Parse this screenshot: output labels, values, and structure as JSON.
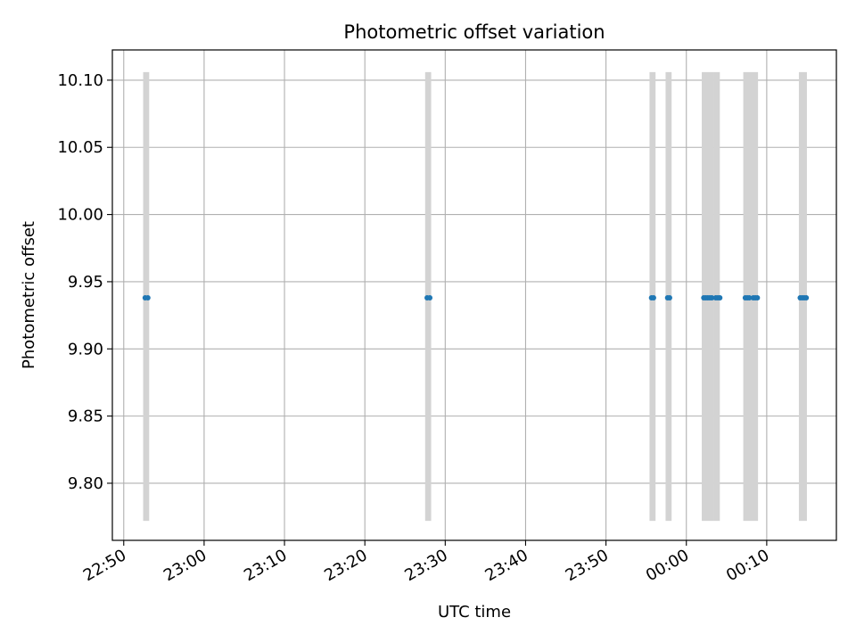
{
  "chart_data": {
    "type": "scatter",
    "title": "Photometric offset variation",
    "xlabel": "UTC time",
    "ylabel": "Photometric offset",
    "x_tick_labels": [
      "22:50",
      "23:00",
      "23:10",
      "23:20",
      "23:30",
      "23:40",
      "23:50",
      "00:00",
      "00:10"
    ],
    "y_ticks": [
      9.8,
      9.85,
      9.9,
      9.95,
      10.0,
      10.05,
      10.1
    ],
    "y_tick_labels": [
      "9.80",
      "9.85",
      "9.90",
      "9.95",
      "10.00",
      "10.05",
      "10.10"
    ],
    "xlim": [
      "22:48:35",
      "00:18:40"
    ],
    "ylim": [
      9.7575,
      10.1225
    ],
    "grid": true,
    "point_color": "#1f77b4",
    "band_color": "#d3d3d3",
    "band_range": [
      9.772,
      10.106
    ],
    "points": [
      {
        "time": "22:52:40",
        "value": 9.938
      },
      {
        "time": "22:53:00",
        "value": 9.938
      },
      {
        "time": "23:27:45",
        "value": 9.938
      },
      {
        "time": "23:28:05",
        "value": 9.938
      },
      {
        "time": "23:55:40",
        "value": 9.938
      },
      {
        "time": "23:55:55",
        "value": 9.938
      },
      {
        "time": "23:57:40",
        "value": 9.938
      },
      {
        "time": "23:57:55",
        "value": 9.938
      },
      {
        "time": "00:02:10",
        "value": 9.938
      },
      {
        "time": "00:02:25",
        "value": 9.938
      },
      {
        "time": "00:02:40",
        "value": 9.938
      },
      {
        "time": "00:02:55",
        "value": 9.938
      },
      {
        "time": "00:03:10",
        "value": 9.938
      },
      {
        "time": "00:03:40",
        "value": 9.938
      },
      {
        "time": "00:03:55",
        "value": 9.938
      },
      {
        "time": "00:04:10",
        "value": 9.938
      },
      {
        "time": "00:07:20",
        "value": 9.938
      },
      {
        "time": "00:07:35",
        "value": 9.938
      },
      {
        "time": "00:07:50",
        "value": 9.938
      },
      {
        "time": "00:08:20",
        "value": 9.938
      },
      {
        "time": "00:08:35",
        "value": 9.938
      },
      {
        "time": "00:08:50",
        "value": 9.938
      },
      {
        "time": "00:14:10",
        "value": 9.938
      },
      {
        "time": "00:14:25",
        "value": 9.938
      },
      {
        "time": "00:14:40",
        "value": 9.938
      },
      {
        "time": "00:14:55",
        "value": 9.938
      }
    ],
    "bands": [
      {
        "start": "22:52:25",
        "end": "22:53:10"
      },
      {
        "start": "23:27:30",
        "end": "23:28:15"
      },
      {
        "start": "23:55:25",
        "end": "23:56:10"
      },
      {
        "start": "23:57:25",
        "end": "23:58:10"
      },
      {
        "start": "00:01:55",
        "end": "00:03:25"
      },
      {
        "start": "00:03:25",
        "end": "00:04:10"
      },
      {
        "start": "00:07:05",
        "end": "00:08:55"
      },
      {
        "start": "00:14:00",
        "end": "00:15:00"
      }
    ]
  }
}
